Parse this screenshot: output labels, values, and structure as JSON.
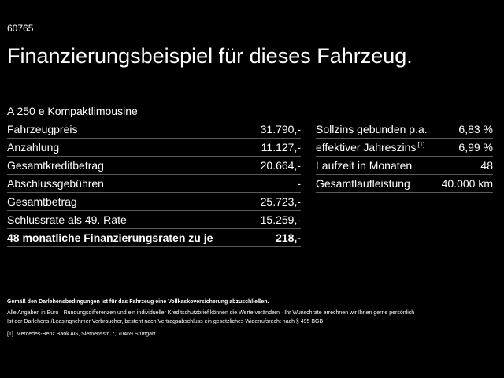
{
  "code": "60765",
  "title": "Finanzierungsbeispiel für dieses Fahrzeug.",
  "model": "A 250 e Kompaktlimousine",
  "left_table": [
    {
      "label": "Fahrzeugpreis",
      "value": "31.790,-"
    },
    {
      "label": "Anzahlung",
      "value": "11.127,-"
    },
    {
      "label": "Gesamtkreditbetrag",
      "value": "20.664,-"
    },
    {
      "label": "Abschlussgebühren",
      "value": "-"
    },
    {
      "label": "Gesamtbetrag",
      "value": "25.723,-"
    },
    {
      "label": "Schlussrate als 49. Rate",
      "value": "15.259,-"
    },
    {
      "label": "48 monatliche Finanzierungsraten zu je",
      "value": "218,-"
    }
  ],
  "right_table": [
    {
      "label": "Sollzins gebunden p.a.",
      "value": "6,83 %"
    },
    {
      "label": "effektiver Jahreszins",
      "sup": "[1]",
      "value": "6,99 %"
    },
    {
      "label": "Laufzeit in Monaten",
      "value": "48"
    },
    {
      "label": "Gesamtlaufleistung",
      "value": "40.000 km"
    }
  ],
  "notes": {
    "insurance": "Gemäß den Darlehensbedingungen ist für das Fahrzeug eine Vollkaskoversicherung abzuschließen.",
    "disclaimer": "Alle Angaben in Euro · Rundungsdifferenzen und ein individueller Kreditschutzbrief können die Werte verändern · Ihr Wunschrate errechnen wir Ihnen gerne persönlich",
    "consumer": "Ist der Darlehens-/Leasingnehmer Verbraucher, besteht nach Vertragsabschluss ein gesetzliches Widerrufsrecht nach § 495 BGB",
    "footnote_mark": "[1]",
    "footnote": "Mercedes-Benz Bank AG, Siemensstr. 7, 70469 Stuttgart."
  }
}
